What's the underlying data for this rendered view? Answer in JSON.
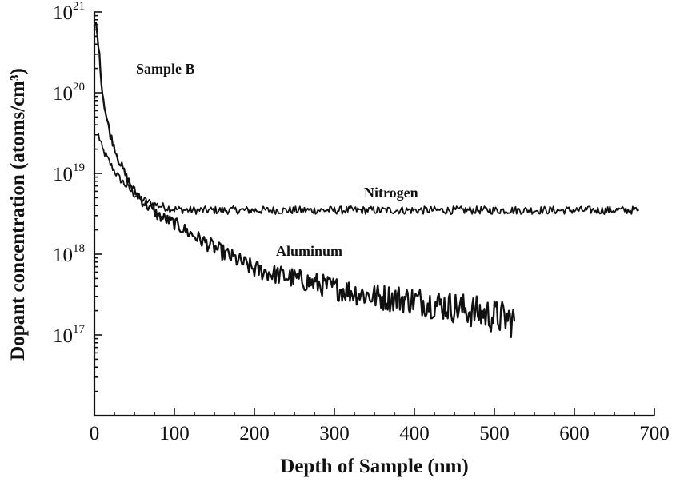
{
  "chart_data": {
    "type": "line",
    "title": "",
    "xlabel": "Depth of Sample (nm)",
    "ylabel": "Dopant concentration (atoms/cm³)",
    "yscale": "log",
    "xlim": [
      0,
      700
    ],
    "ylim": [
      1e+16,
      1e+21
    ],
    "x_ticks": [
      0,
      100,
      200,
      300,
      400,
      500,
      600,
      700
    ],
    "x_tick_labels": [
      "0",
      "100",
      "200",
      "300",
      "400",
      "500",
      "600",
      "700"
    ],
    "y_ticks": [
      {
        "value": 1e+21,
        "base": "10",
        "exp": "21"
      },
      {
        "value": 1e+20,
        "base": "10",
        "exp": "20"
      },
      {
        "value": 1e+19,
        "base": "10",
        "exp": "19"
      },
      {
        "value": 1e+18,
        "base": "10",
        "exp": "18"
      },
      {
        "value": 1e+17,
        "base": "10",
        "exp": "17"
      }
    ],
    "grid": false,
    "annotations": [
      {
        "key": "sample",
        "text": "Sample B"
      },
      {
        "key": "nitrogen",
        "text": "Nitrogen"
      },
      {
        "key": "aluminum",
        "text": "Aluminum"
      }
    ],
    "series": [
      {
        "name": "Nitrogen",
        "x": [
          5,
          10,
          20,
          30,
          40,
          50,
          60,
          70,
          80,
          90,
          100,
          120,
          150,
          200,
          250,
          300,
          350,
          400,
          450,
          500,
          550,
          600,
          650,
          680
        ],
        "y": [
          3e+19,
          2e+19,
          1.3e+19,
          9e+18,
          7e+18,
          5.5e+18,
          4.8e+18,
          4.3e+18,
          4e+18,
          3.8e+18,
          3.6e+18,
          3.5e+18,
          3.5e+18,
          3.5e+18,
          3.5e+18,
          3.5e+18,
          3.5e+18,
          3.5e+18,
          3.5e+18,
          3.5e+18,
          3.5e+18,
          3.5e+18,
          3.5e+18,
          3.5e+18
        ]
      },
      {
        "name": "Aluminum",
        "x": [
          2,
          5,
          10,
          15,
          20,
          30,
          40,
          50,
          60,
          80,
          100,
          120,
          150,
          200,
          250,
          300,
          350,
          400,
          450,
          500,
          525
        ],
        "y": [
          7e+20,
          4e+20,
          1e+20,
          5e+19,
          3e+19,
          1.5e+19,
          9e+18,
          6e+18,
          4.5e+18,
          3e+18,
          2.4e+18,
          1.8e+18,
          1.2e+18,
          6.5e+17,
          5e+17,
          3.8e+17,
          3e+17,
          2.7e+17,
          2.2e+17,
          1.7e+17,
          1.5e+17
        ]
      }
    ]
  }
}
